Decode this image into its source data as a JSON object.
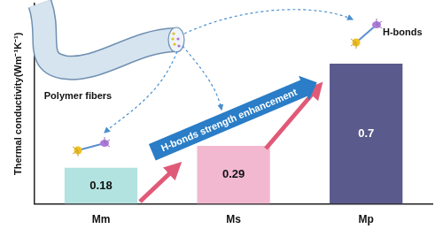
{
  "chart_data": {
    "type": "bar",
    "y_label": "Thermal conductivity(Wm⁻¹K⁻¹)",
    "categories": [
      "Mm",
      "Ms",
      "Mp"
    ],
    "values": [
      0.18,
      0.29,
      0.7
    ],
    "colors": [
      "#b3e3e0",
      "#f2b8d0",
      "#5a5a8c"
    ],
    "ylim": [
      0,
      1
    ],
    "grid": false,
    "data_labels": true,
    "tick_labels": "x",
    "annotations": [
      "Polymer fibers",
      "H-bonds",
      "H-bonds strength enhancement"
    ]
  }
}
